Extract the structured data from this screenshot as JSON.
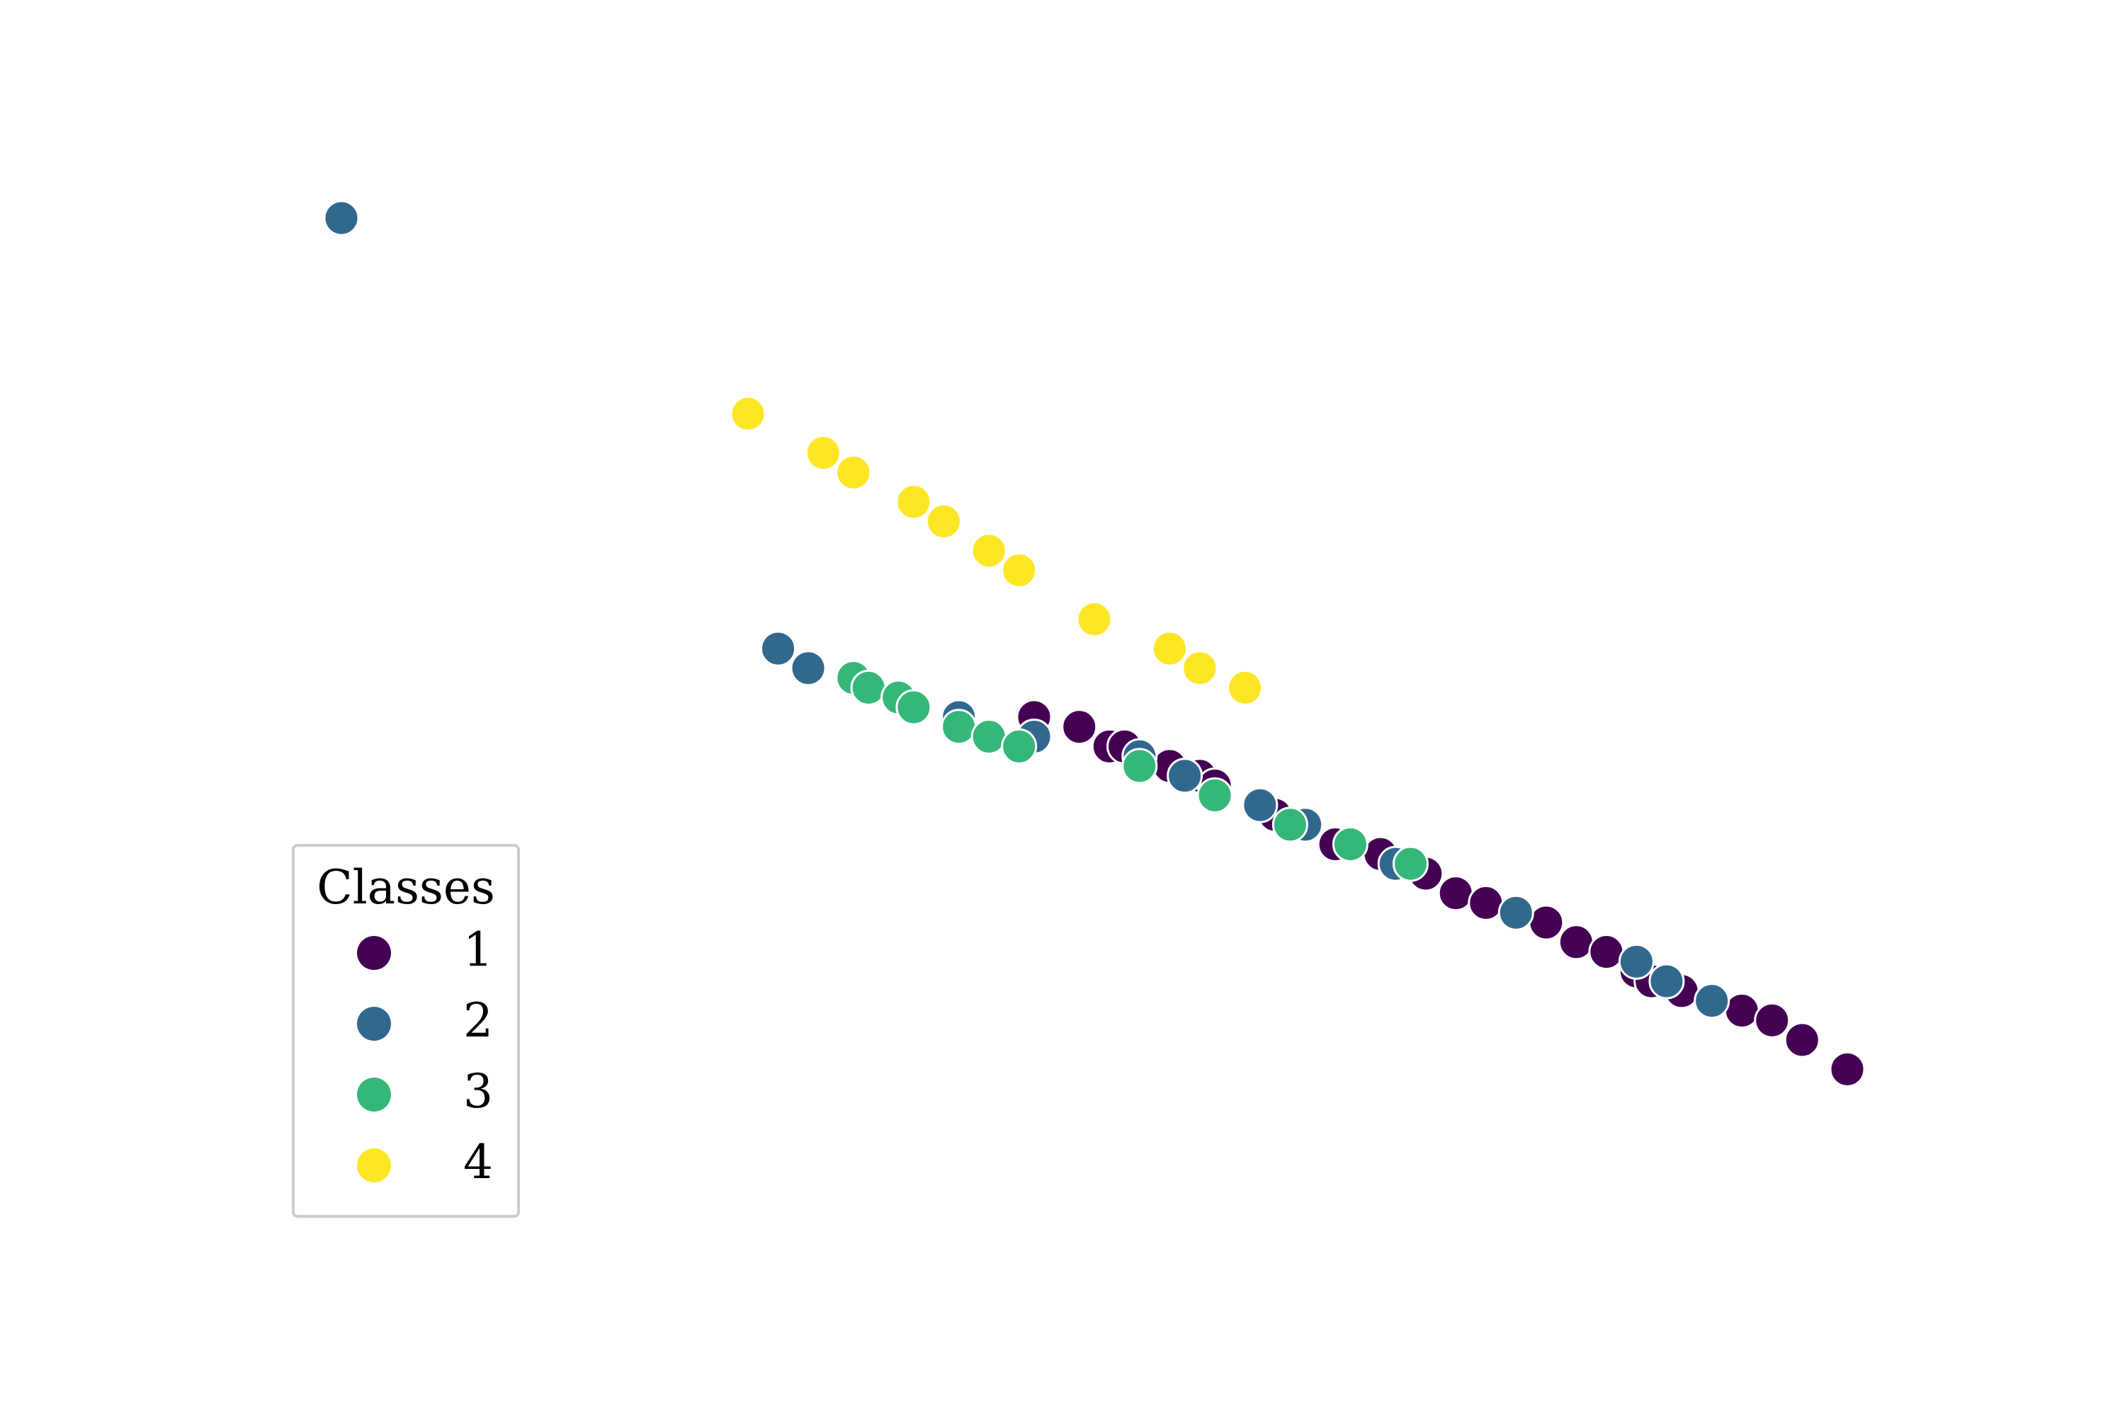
{
  "chart_data": {
    "type": "scatter",
    "title": "",
    "xlabel": "",
    "ylabel": "",
    "xlim": [
      0,
      1
    ],
    "ylim": [
      0,
      1
    ],
    "grid": false,
    "axes_visible": false,
    "legend": {
      "title": "Classes",
      "placement": "lower-left",
      "entries": [
        "1",
        "2",
        "3",
        "4"
      ]
    },
    "series": [
      {
        "name": "1",
        "color": "#440154",
        "points": [
          [
            0.46,
            0.49
          ],
          [
            0.49,
            0.48
          ],
          [
            0.51,
            0.46
          ],
          [
            0.52,
            0.46
          ],
          [
            0.55,
            0.44
          ],
          [
            0.57,
            0.43
          ],
          [
            0.58,
            0.42
          ],
          [
            0.61,
            0.4
          ],
          [
            0.62,
            0.39
          ],
          [
            0.64,
            0.38
          ],
          [
            0.66,
            0.36
          ],
          [
            0.69,
            0.35
          ],
          [
            0.72,
            0.33
          ],
          [
            0.74,
            0.31
          ],
          [
            0.76,
            0.3
          ],
          [
            0.78,
            0.29
          ],
          [
            0.8,
            0.28
          ],
          [
            0.82,
            0.26
          ],
          [
            0.84,
            0.25
          ],
          [
            0.86,
            0.23
          ],
          [
            0.87,
            0.22
          ],
          [
            0.89,
            0.21
          ],
          [
            0.91,
            0.2
          ],
          [
            0.93,
            0.19
          ],
          [
            0.95,
            0.18
          ],
          [
            0.97,
            0.16
          ],
          [
            1.0,
            0.13
          ]
        ]
      },
      {
        "name": "2",
        "color": "#31688e",
        "points": [
          [
            0.0,
            1.0
          ],
          [
            0.29,
            0.56
          ],
          [
            0.31,
            0.54
          ],
          [
            0.37,
            0.51
          ],
          [
            0.41,
            0.49
          ],
          [
            0.46,
            0.47
          ],
          [
            0.53,
            0.45
          ],
          [
            0.56,
            0.43
          ],
          [
            0.61,
            0.4
          ],
          [
            0.64,
            0.38
          ],
          [
            0.7,
            0.34
          ],
          [
            0.78,
            0.29
          ],
          [
            0.86,
            0.24
          ],
          [
            0.88,
            0.22
          ],
          [
            0.91,
            0.2
          ]
        ]
      },
      {
        "name": "3",
        "color": "#35b779",
        "points": [
          [
            0.34,
            0.53
          ],
          [
            0.35,
            0.52
          ],
          [
            0.37,
            0.51
          ],
          [
            0.38,
            0.5
          ],
          [
            0.41,
            0.48
          ],
          [
            0.43,
            0.47
          ],
          [
            0.45,
            0.46
          ],
          [
            0.53,
            0.44
          ],
          [
            0.58,
            0.41
          ],
          [
            0.63,
            0.38
          ],
          [
            0.67,
            0.36
          ],
          [
            0.71,
            0.34
          ]
        ]
      },
      {
        "name": "4",
        "color": "#fde725",
        "points": [
          [
            0.27,
            0.8
          ],
          [
            0.32,
            0.76
          ],
          [
            0.34,
            0.74
          ],
          [
            0.38,
            0.71
          ],
          [
            0.4,
            0.69
          ],
          [
            0.43,
            0.66
          ],
          [
            0.45,
            0.64
          ],
          [
            0.5,
            0.59
          ],
          [
            0.55,
            0.56
          ],
          [
            0.57,
            0.54
          ],
          [
            0.6,
            0.52
          ]
        ]
      }
    ]
  }
}
